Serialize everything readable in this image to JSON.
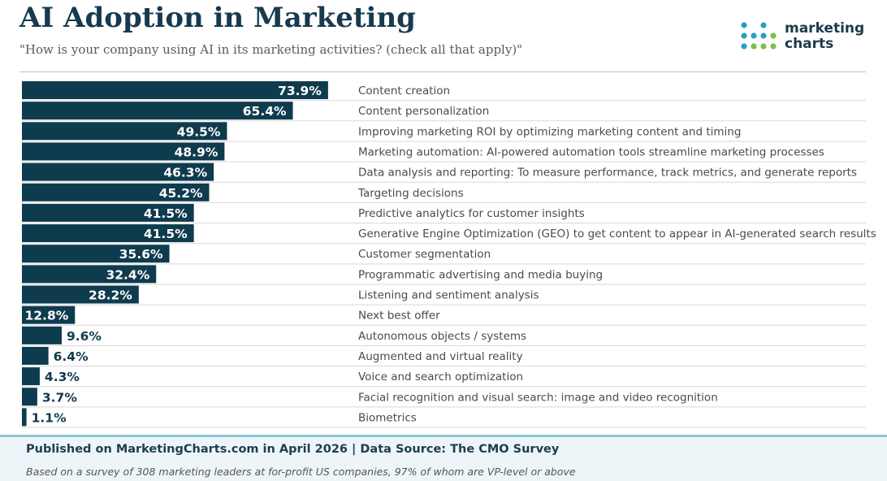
{
  "header": {
    "title": "AI Adoption in Marketing",
    "subtitle": "\"How is your company using AI in its marketing activities? (check all that apply)\""
  },
  "logo": {
    "line1": "marketing",
    "line2": "charts",
    "dot_colors": [
      "#2a9fc0",
      "#7bc14e",
      "#b8b8b8"
    ]
  },
  "colors": {
    "bar": "#0f3b4e",
    "bar_label": "#ffffff",
    "outside_label": "#0f3b4e",
    "category_text": "#4a4a4a",
    "gridline": "#d9d9d9"
  },
  "chart_data": {
    "type": "bar",
    "orientation": "horizontal",
    "categories": [
      "Content creation",
      "Content personalization",
      "Improving marketing ROI by optimizing marketing content and timing",
      "Marketing automation: AI-powered automation tools streamline marketing processes",
      "Data analysis and reporting: To measure performance, track metrics, and generate reports",
      "Targeting decisions",
      "Predictive analytics for customer insights",
      "Generative Engine Optimization (GEO) to get content to appear in AI-generated search results",
      "Customer segmentation",
      "Programmatic advertising and media buying",
      "Listening and sentiment analysis",
      "Next best offer",
      "Autonomous objects / systems",
      "Augmented and virtual reality",
      "Voice and search optimization",
      "Facial recognition and visual search: image and video recognition",
      "Biometrics"
    ],
    "values": [
      73.9,
      65.4,
      49.5,
      48.9,
      46.3,
      45.2,
      41.5,
      41.5,
      35.6,
      32.4,
      28.2,
      12.8,
      9.6,
      6.4,
      4.3,
      3.7,
      1.1
    ],
    "labels": [
      "73.9%",
      "65.4%",
      "49.5%",
      "48.9%",
      "46.3%",
      "45.2%",
      "41.5%",
      "41.5%",
      "35.6%",
      "32.4%",
      "28.2%",
      "12.8%",
      "9.6%",
      "6.4%",
      "4.3%",
      "3.7%",
      "1.1%"
    ],
    "xlim": [
      0,
      100
    ],
    "grid": "horizontal row separators"
  },
  "footer": {
    "published": "Published on MarketingCharts.com in April 2026 | Data Source: The CMO Survey",
    "note": "Based on a survey of 308 marketing leaders at for-profit US companies, 97% of whom are VP-level or above"
  }
}
